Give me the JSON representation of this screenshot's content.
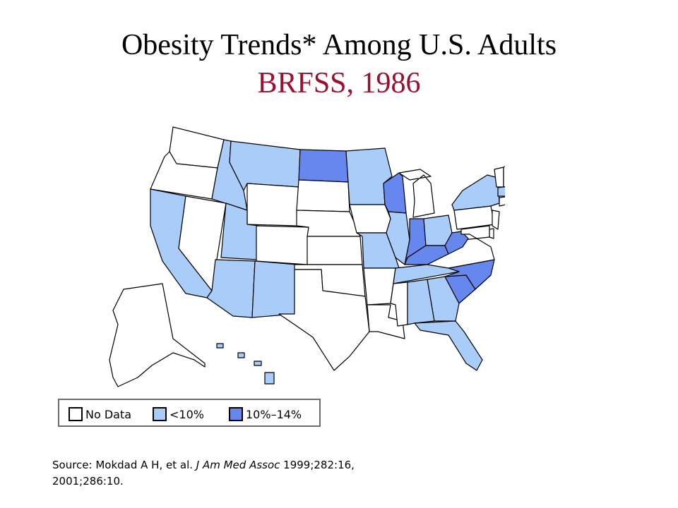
{
  "title": {
    "line1": "Obesity Trends* Among U.S. Adults",
    "line2": "BRFSS, 1986",
    "line2_color": "#9b1030"
  },
  "legend": {
    "items": [
      {
        "key": "nodata",
        "label": "No Data",
        "color": "#ffffff"
      },
      {
        "key": "lt10",
        "label": "<10%",
        "color": "#aaccf8"
      },
      {
        "key": "10to14",
        "label": "10%–14%",
        "color": "#6688ee"
      }
    ]
  },
  "map_data": {
    "year": "1986",
    "states": {
      "WA": "nodata",
      "OR": "nodata",
      "CA": "lt10",
      "NV": "nodata",
      "ID": "lt10",
      "MT": "lt10",
      "WY": "nodata",
      "UT": "lt10",
      "AZ": "lt10",
      "CO": "nodata",
      "NM": "lt10",
      "ND": "10to14",
      "SD": "nodata",
      "NE": "nodata",
      "KS": "nodata",
      "OK": "nodata",
      "TX": "nodata",
      "MN": "lt10",
      "IA": "nodata",
      "MO": "lt10",
      "AR": "nodata",
      "LA": "nodata",
      "WI": "10to14",
      "IL": "lt10",
      "MI": "nodata",
      "IN": "10to14",
      "OH": "lt10",
      "KY": "10to14",
      "TN": "lt10",
      "MS": "nodata",
      "AL": "lt10",
      "GA": "lt10",
      "FL": "lt10",
      "SC": "10to14",
      "NC": "10to14",
      "VA": "nodata",
      "WV": "10to14",
      "PA": "nodata",
      "NY": "lt10",
      "ME": "nodata",
      "VT": "nodata",
      "NH": "nodata",
      "MA": "lt10",
      "RI": "10to14",
      "CT": "nodata",
      "NJ": "nodata",
      "DE": "nodata",
      "MD": "nodata",
      "AK": "nodata",
      "HI": "lt10"
    }
  },
  "source": {
    "prefix": "Source: Mokdad A H, et al. ",
    "journal": "J Am Med Assoc",
    "suffix": " 1999;282:16,",
    "line2": "2001;286:10."
  }
}
